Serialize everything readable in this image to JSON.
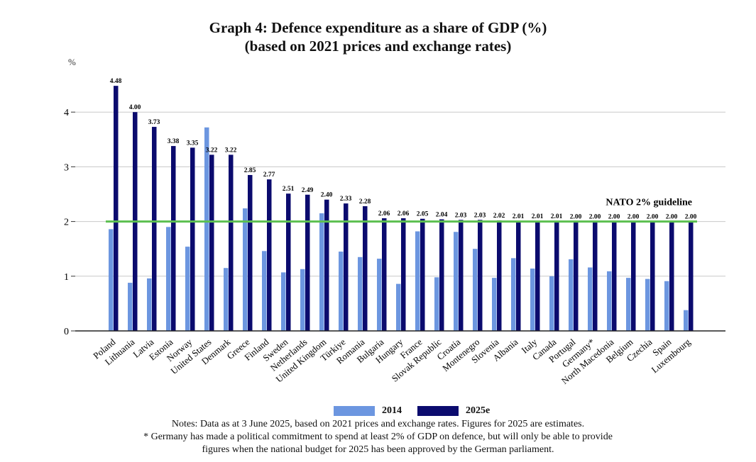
{
  "title_line1": "Graph 4: Defence expenditure as a share of GDP (%)",
  "title_line2": "(based on 2021 prices and exchange rates)",
  "notes": [
    "Notes: Data as at 3 June 2025, based on 2021 prices and exchange rates. Figures for 2025 are estimates.",
    "* Germany has made a political commitment to spend at least 2% of GDP on defence, but will only be able to provide",
    "figures when the national budget for 2025 has been approved by the German parliament."
  ],
  "colors": {
    "series_2014": "#6c96e0",
    "series_2025": "#0b0b6e",
    "guideline": "#5cc050",
    "grid": "#c8c8c8"
  },
  "chart_data": {
    "type": "bar",
    "title": "Graph 4: Defence expenditure as a share of GDP (%)",
    "subtitle": "(based on 2021 prices and exchange rates)",
    "ylabel": "%",
    "xlabel": "",
    "ylim": [
      0,
      5
    ],
    "yticks": [
      0,
      1,
      2,
      3,
      4
    ],
    "grid": true,
    "legend": "bottom-center",
    "categories": [
      "Poland",
      "Lithuania",
      "Latvia",
      "Estonia",
      "Norway",
      "United States",
      "Denmark",
      "Greece",
      "Finland",
      "Sweden",
      "Netherlands",
      "United Kingdom",
      "Türkiye",
      "Romania",
      "Bulgaria",
      "Hungary",
      "France",
      "Slovak Republic",
      "Croatia",
      "Montenegro",
      "Slovenia",
      "Albania",
      "Italy",
      "Canada",
      "Portugal",
      "Germany*",
      "North Macedonia",
      "Belgium",
      "Czechia",
      "Spain",
      "Luxembourg"
    ],
    "series": [
      {
        "name": "2014",
        "values": [
          1.86,
          0.88,
          0.96,
          1.9,
          1.54,
          3.72,
          1.15,
          2.24,
          1.46,
          1.07,
          1.13,
          2.15,
          1.45,
          1.35,
          1.32,
          0.86,
          1.82,
          0.98,
          1.81,
          1.5,
          0.97,
          1.33,
          1.14,
          1.0,
          1.31,
          1.16,
          1.09,
          0.97,
          0.95,
          0.91,
          0.38
        ]
      },
      {
        "name": "2025e",
        "values": [
          4.48,
          4.0,
          3.73,
          3.38,
          3.35,
          3.22,
          3.22,
          2.85,
          2.77,
          2.51,
          2.49,
          2.4,
          2.33,
          2.28,
          2.06,
          2.06,
          2.05,
          2.04,
          2.03,
          2.03,
          2.02,
          2.01,
          2.01,
          2.01,
          2.0,
          2.0,
          2.0,
          2.0,
          2.0,
          2.0,
          2.0
        ]
      }
    ],
    "data_labels": [
      "4.48",
      "4.00",
      "3.73",
      "3.38",
      "3.35",
      "3.22",
      "3.22",
      "2.85",
      "2.77",
      "2.51",
      "2.49",
      "2.40",
      "2.33",
      "2.28",
      "2.06",
      "2.06",
      "2.05",
      "2.04",
      "2.03",
      "2.03",
      "2.02",
      "2.01",
      "2.01",
      "2.01",
      "2.00",
      "2.00",
      "2.00",
      "2.00",
      "2.00",
      "2.00",
      "2.00"
    ],
    "annotations": [
      {
        "text": "NATO 2% guideline",
        "y": 2
      }
    ]
  }
}
